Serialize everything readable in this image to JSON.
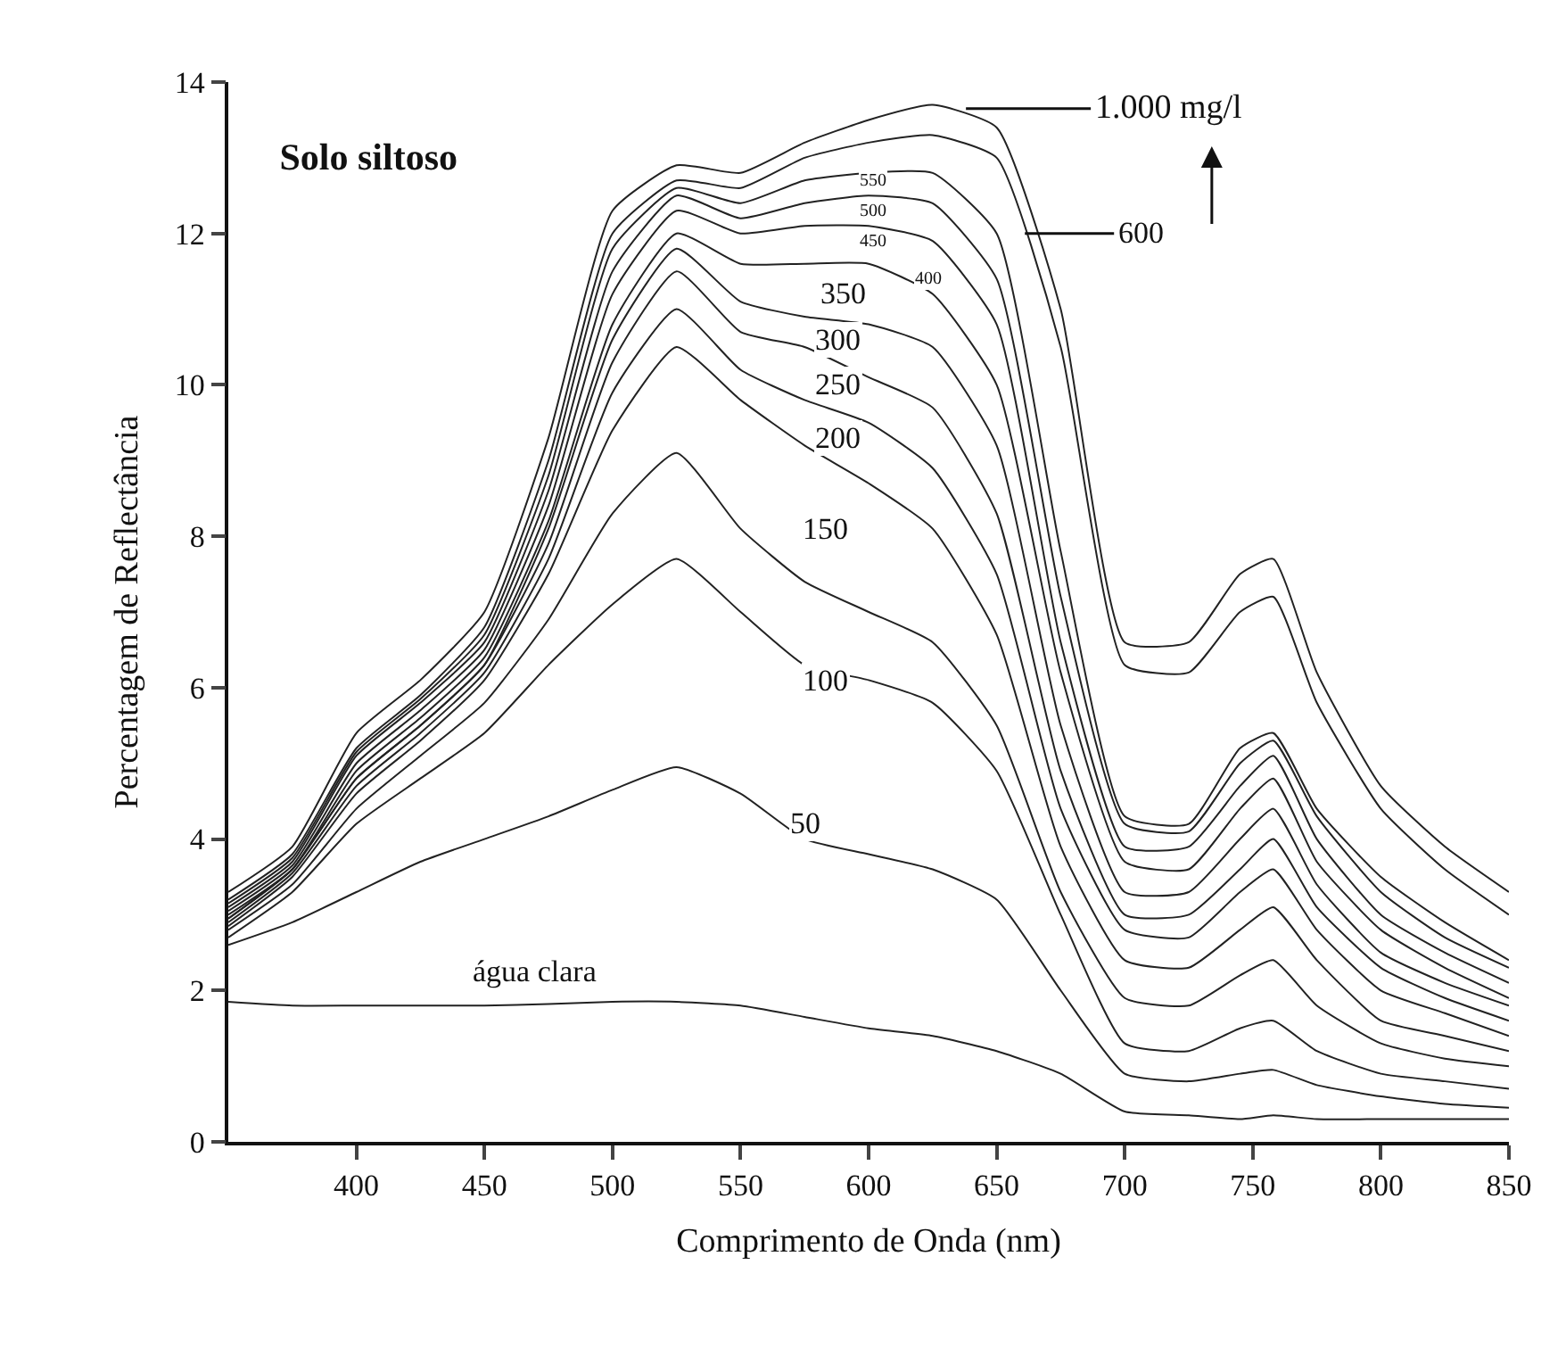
{
  "chart_data": {
    "type": "line",
    "title": "Solo siltoso",
    "xlabel": "Comprimento de Onda (nm)",
    "ylabel": "Percentagem de Reflectância",
    "x": [
      350,
      375,
      400,
      425,
      450,
      475,
      500,
      525,
      550,
      575,
      600,
      625,
      650,
      675,
      700,
      725,
      745,
      758,
      775,
      800,
      825,
      850
    ],
    "xlim": [
      350,
      850
    ],
    "xticks": [
      400,
      450,
      500,
      550,
      600,
      650,
      700,
      750,
      800,
      850
    ],
    "ylim": [
      0,
      14
    ],
    "yticks": [
      0,
      2,
      4,
      6,
      8,
      10,
      12,
      14
    ],
    "series": [
      {
        "color": "#222222",
        "values": [
          1.85,
          1.8,
          1.8,
          1.8,
          1.8,
          1.82,
          1.85,
          1.85,
          1.8,
          1.65,
          1.5,
          1.4,
          1.2,
          0.9,
          0.4,
          0.35,
          0.3,
          0.35,
          0.3,
          0.3,
          0.3,
          0.3
        ]
      },
      {
        "color": "#222222",
        "values": [
          2.6,
          2.9,
          3.3,
          3.7,
          4.0,
          4.3,
          4.65,
          4.95,
          4.6,
          4.0,
          3.8,
          3.6,
          3.2,
          2.0,
          0.9,
          0.8,
          0.9,
          0.95,
          0.75,
          0.6,
          0.5,
          0.45
        ]
      },
      {
        "color": "#222222",
        "values": [
          2.7,
          3.3,
          4.2,
          4.8,
          5.4,
          6.3,
          7.1,
          7.7,
          7.0,
          6.3,
          6.1,
          5.8,
          4.9,
          3.0,
          1.3,
          1.2,
          1.5,
          1.6,
          1.2,
          0.9,
          0.8,
          0.7
        ]
      },
      {
        "color": "#222222",
        "values": [
          2.8,
          3.4,
          4.4,
          5.1,
          5.8,
          6.9,
          8.3,
          9.1,
          8.1,
          7.4,
          7.0,
          6.6,
          5.5,
          3.3,
          1.9,
          1.8,
          2.2,
          2.4,
          1.8,
          1.3,
          1.1,
          1.0
        ]
      },
      {
        "color": "#222222",
        "values": [
          2.85,
          3.5,
          4.6,
          5.3,
          6.1,
          7.5,
          9.4,
          10.5,
          9.8,
          9.2,
          8.7,
          8.1,
          6.7,
          3.9,
          2.4,
          2.3,
          2.8,
          3.1,
          2.4,
          1.6,
          1.4,
          1.2
        ]
      },
      {
        "color": "#222222",
        "values": [
          2.9,
          3.55,
          4.7,
          5.4,
          6.2,
          7.7,
          9.9,
          11.0,
          10.2,
          9.8,
          9.5,
          8.9,
          7.5,
          4.4,
          2.8,
          2.7,
          3.3,
          3.6,
          2.8,
          2.0,
          1.7,
          1.4
        ]
      },
      {
        "color": "#222222",
        "values": [
          2.95,
          3.6,
          4.8,
          5.5,
          6.3,
          7.9,
          10.3,
          11.5,
          10.7,
          10.5,
          10.1,
          9.7,
          8.3,
          4.9,
          3.0,
          3.0,
          3.6,
          4.0,
          3.1,
          2.3,
          1.9,
          1.6
        ]
      },
      {
        "color": "#222222",
        "values": [
          2.95,
          3.6,
          4.8,
          5.5,
          6.3,
          8.1,
          10.6,
          11.8,
          11.1,
          10.9,
          10.8,
          10.5,
          9.2,
          5.5,
          3.3,
          3.3,
          4.0,
          4.4,
          3.4,
          2.5,
          2.1,
          1.8
        ]
      },
      {
        "color": "#222222",
        "values": [
          3.0,
          3.6,
          4.9,
          5.6,
          6.4,
          8.2,
          10.8,
          12.0,
          11.6,
          11.6,
          11.6,
          11.2,
          10.0,
          6.2,
          3.7,
          3.6,
          4.4,
          4.8,
          3.7,
          2.8,
          2.3,
          1.9
        ]
      },
      {
        "color": "#222222",
        "values": [
          3.05,
          3.65,
          5.0,
          5.7,
          6.5,
          8.4,
          11.2,
          12.3,
          12.0,
          12.1,
          12.1,
          11.9,
          10.8,
          6.6,
          3.9,
          3.9,
          4.7,
          5.1,
          4.0,
          3.0,
          2.5,
          2.1
        ]
      },
      {
        "color": "#222222",
        "values": [
          3.1,
          3.7,
          5.1,
          5.8,
          6.6,
          8.6,
          11.5,
          12.5,
          12.2,
          12.4,
          12.5,
          12.4,
          11.4,
          7.2,
          4.2,
          4.1,
          5.0,
          5.3,
          4.3,
          3.3,
          2.7,
          2.3
        ]
      },
      {
        "color": "#222222",
        "values": [
          3.15,
          3.75,
          5.15,
          5.85,
          6.7,
          8.8,
          11.8,
          12.6,
          12.4,
          12.7,
          12.8,
          12.8,
          12.0,
          7.8,
          4.3,
          4.2,
          5.2,
          5.4,
          4.4,
          3.5,
          2.9,
          2.4
        ]
      },
      {
        "color": "#222222",
        "values": [
          3.2,
          3.8,
          5.2,
          5.9,
          6.8,
          9.0,
          12.0,
          12.7,
          12.6,
          13.0,
          13.2,
          13.3,
          13.0,
          10.5,
          6.3,
          6.2,
          7.0,
          7.2,
          5.8,
          4.4,
          3.6,
          3.0
        ]
      },
      {
        "color": "#222222",
        "values": [
          3.3,
          3.9,
          5.4,
          6.1,
          7.0,
          9.3,
          12.3,
          12.9,
          12.8,
          13.2,
          13.5,
          13.7,
          13.4,
          11.0,
          6.6,
          6.6,
          7.5,
          7.7,
          6.2,
          4.7,
          3.9,
          3.3
        ]
      }
    ],
    "annotations": [
      {
        "text": "água clara",
        "x": 470,
        "y": 1.82
      },
      {
        "text": "50",
        "x": 575,
        "y": 4.2
      },
      {
        "text": "100",
        "x": 583,
        "y": 6.1
      },
      {
        "text": "150",
        "x": 583,
        "y": 8.1
      },
      {
        "text": "200",
        "x": 588,
        "y": 9.3
      },
      {
        "text": "250",
        "x": 588,
        "y": 10.0
      },
      {
        "text": "300",
        "x": 588,
        "y": 10.6
      },
      {
        "text": "350",
        "x": 590,
        "y": 11.2
      },
      {
        "text": "400",
        "x": 623,
        "y": 11.4
      },
      {
        "text": "450",
        "x": 602,
        "y": 11.9
      },
      {
        "text": "500",
        "x": 602,
        "y": 12.3
      },
      {
        "text": "550",
        "x": 602,
        "y": 12.7
      },
      {
        "text": "1.000 mg/l",
        "x": 638,
        "y": 13.65
      },
      {
        "text": "600",
        "x": 661,
        "y": 12.0
      }
    ]
  }
}
